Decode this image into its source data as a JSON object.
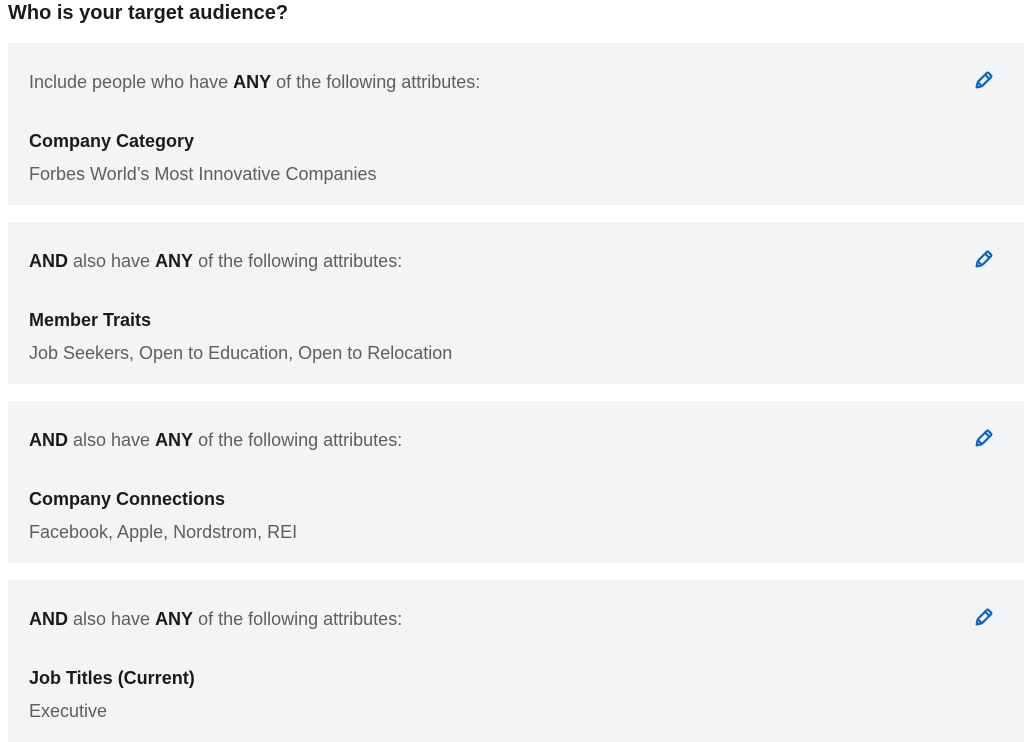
{
  "title": "Who is your target audience?",
  "accent_color": "#0a66c2",
  "cards": [
    {
      "intro": [
        "",
        "Include people who have ",
        "ANY",
        " of the following attributes:"
      ],
      "heading": "Company Category",
      "value": "Forbes World’s Most Innovative Companies",
      "icon": "pencil-icon"
    },
    {
      "intro": [
        "AND",
        " also have ",
        "ANY",
        " of the following attributes:"
      ],
      "heading": "Member Traits",
      "value": "Job Seekers, Open to Education, Open to Relocation",
      "icon": "pencil-icon"
    },
    {
      "intro": [
        "AND",
        " also have ",
        "ANY",
        " of the following attributes:"
      ],
      "heading": "Company Connections",
      "value": "Facebook, Apple, Nordstrom, REI",
      "icon": "pencil-icon"
    },
    {
      "intro": [
        "AND",
        " also have ",
        "ANY",
        " of the following attributes:"
      ],
      "heading": "Job Titles (Current)",
      "value": "Executive",
      "icon": "pencil-icon"
    }
  ]
}
